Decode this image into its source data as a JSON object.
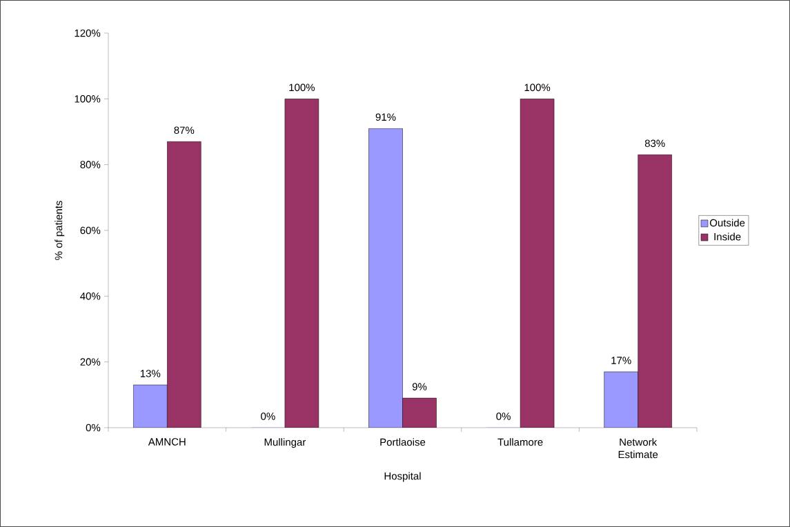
{
  "chart_data": {
    "type": "bar",
    "xlabel": "Hospital",
    "ylabel": "% of patients",
    "categories": [
      "AMNCH",
      "Mullingar",
      "Portlaoise",
      "Tullamore",
      "Network Estimate"
    ],
    "series": [
      {
        "name": "Outside",
        "color": "#9999ff",
        "values": [
          13,
          0,
          91,
          0,
          17
        ],
        "value_labels": [
          "13%",
          "0%",
          "91%",
          "0%",
          "17%"
        ]
      },
      {
        "name": "Inside",
        "color": "#993366",
        "values": [
          87,
          100,
          9,
          100,
          83
        ],
        "value_labels": [
          "87%",
          "100%",
          "9%",
          "100%",
          "83%"
        ]
      }
    ],
    "ylim": [
      0,
      120
    ],
    "yticks": [
      {
        "value": 0,
        "label": "0%"
      },
      {
        "value": 20,
        "label": "20%"
      },
      {
        "value": 40,
        "label": "40%"
      },
      {
        "value": 60,
        "label": "60%"
      },
      {
        "value": 80,
        "label": "80%"
      },
      {
        "value": 100,
        "label": "100%"
      },
      {
        "value": 120,
        "label": "120%"
      }
    ],
    "grid": false,
    "legend": "right"
  }
}
